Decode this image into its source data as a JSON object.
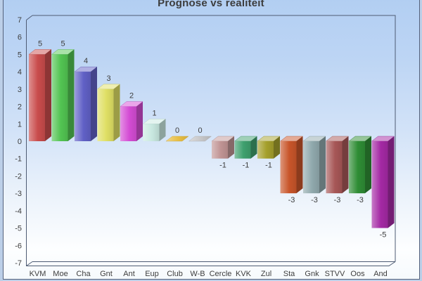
{
  "title": "Prognose vs realiteit",
  "chart_data": {
    "type": "bar",
    "style": "3d",
    "title": "Prognose vs realiteit",
    "categories": [
      "KVM",
      "Moe",
      "Cha",
      "Gnt",
      "Ant",
      "Eup",
      "Club",
      "W-B",
      "Cercle",
      "KVK",
      "Zul",
      "Sta",
      "Gnk",
      "STVV",
      "Oos",
      "And"
    ],
    "values": [
      5,
      5,
      4,
      3,
      2,
      1,
      0,
      0,
      -1,
      -1,
      -1,
      -3,
      -3,
      -3,
      -3,
      -5
    ],
    "bar_colors": [
      "#C94C4C",
      "#52C452",
      "#6161C6",
      "#DFDF64",
      "#D44CD4",
      "#C8E8E0",
      "#E8BE44",
      "#C6C6C8",
      "#C09494",
      "#3FA06E",
      "#A5A02C",
      "#C8552A",
      "#90A9AD",
      "#A75757",
      "#2F8D35",
      "#A429A4"
    ],
    "value_labels": [
      "5",
      "5",
      "4",
      "3",
      "2",
      "1",
      "0",
      "0",
      "-1",
      "-1",
      "-1",
      "-3",
      "-3",
      "-3",
      "-3",
      "-5"
    ],
    "xlabel": "",
    "ylabel": "",
    "ylim": [
      -7,
      7
    ],
    "yticks": [
      7,
      6,
      5,
      4,
      3,
      2,
      1,
      0,
      -1,
      -2,
      -3,
      -4,
      -5,
      -6,
      -7
    ],
    "grid": false,
    "legend": false
  },
  "colors": {
    "page_background": "#bccfe8",
    "panel_gradient_top": "#b0cdf2",
    "panel_gradient_bottom": "#f6fafd",
    "panel_border": "#55627c",
    "axis_frame": "#4e5b73",
    "label_text": "#3d3d3d",
    "title_text": "#3c3c3c"
  }
}
